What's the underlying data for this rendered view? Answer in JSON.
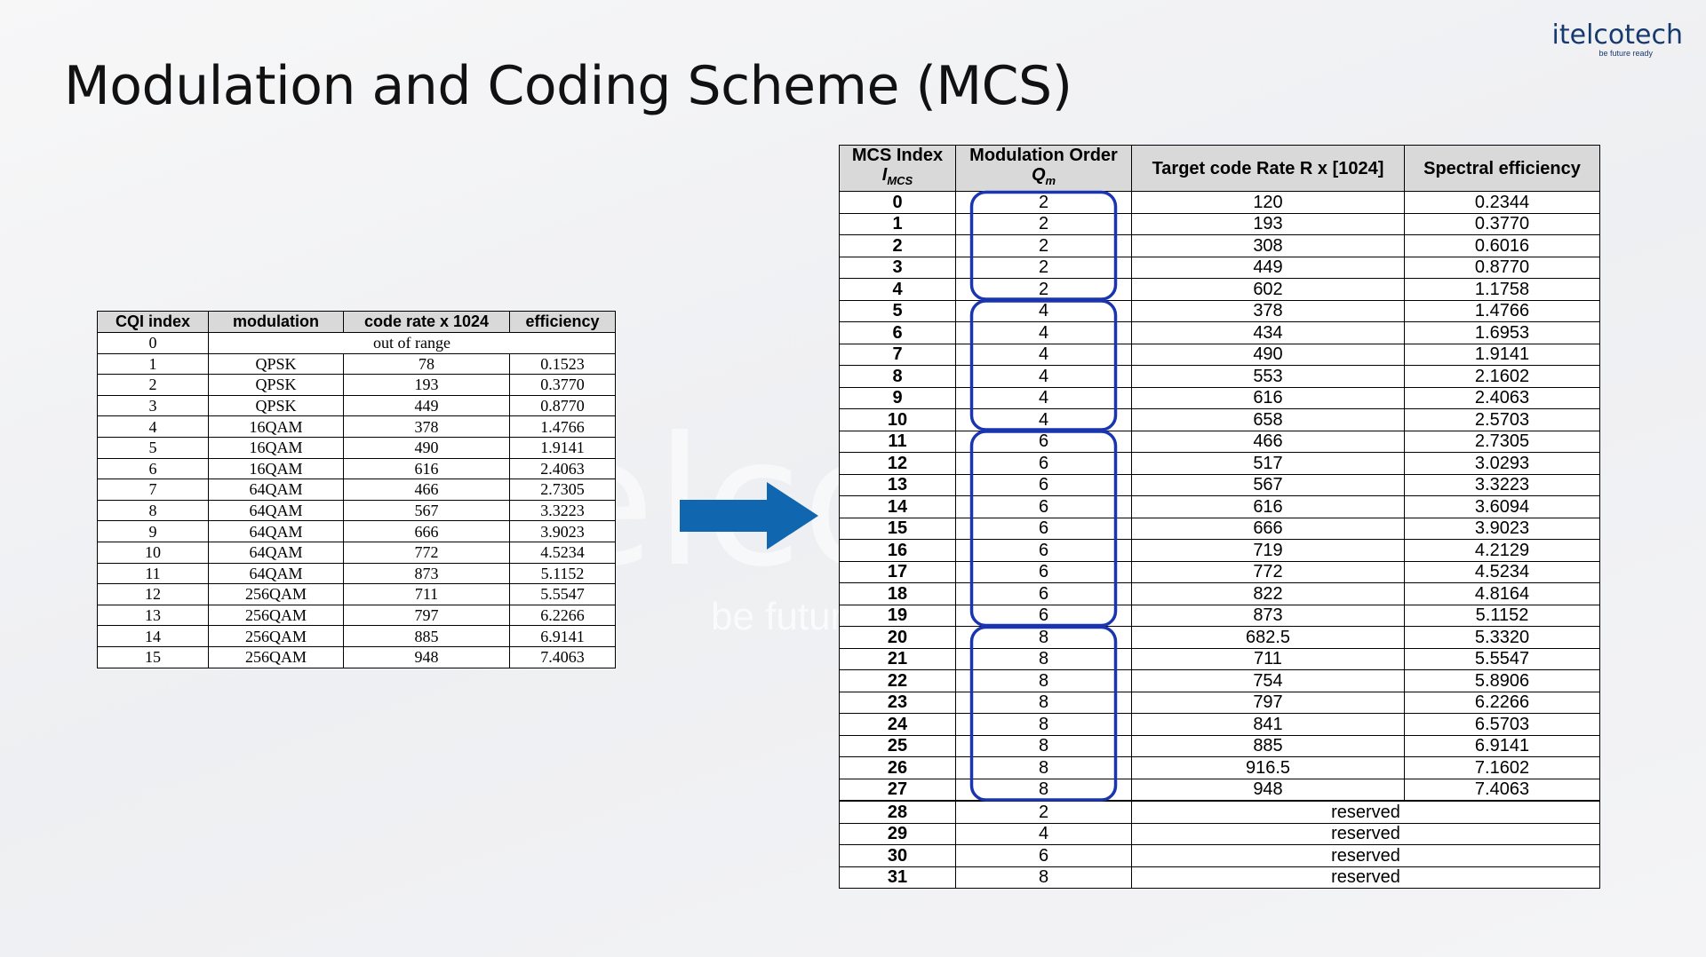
{
  "title": "Modulation and Coding Scheme (MCS)",
  "logo": {
    "name": "itelcotech",
    "tagline": "be future ready"
  },
  "cqi_table": {
    "header": [
      "CQI index",
      "modulation",
      "code rate x 1024",
      "efficiency"
    ],
    "rows": [
      [
        "0",
        "out of range"
      ],
      [
        "1",
        "QPSK",
        "78",
        "0.1523"
      ],
      [
        "2",
        "QPSK",
        "193",
        "0.3770"
      ],
      [
        "3",
        "QPSK",
        "449",
        "0.8770"
      ],
      [
        "4",
        "16QAM",
        "378",
        "1.4766"
      ],
      [
        "5",
        "16QAM",
        "490",
        "1.9141"
      ],
      [
        "6",
        "16QAM",
        "616",
        "2.4063"
      ],
      [
        "7",
        "64QAM",
        "466",
        "2.7305"
      ],
      [
        "8",
        "64QAM",
        "567",
        "3.3223"
      ],
      [
        "9",
        "64QAM",
        "666",
        "3.9023"
      ],
      [
        "10",
        "64QAM",
        "772",
        "4.5234"
      ],
      [
        "11",
        "64QAM",
        "873",
        "5.1152"
      ],
      [
        "12",
        "256QAM",
        "711",
        "5.5547"
      ],
      [
        "13",
        "256QAM",
        "797",
        "6.2266"
      ],
      [
        "14",
        "256QAM",
        "885",
        "6.9141"
      ],
      [
        "15",
        "256QAM",
        "948",
        "7.4063"
      ]
    ]
  },
  "mcs_table": {
    "header": [
      {
        "line1": "MCS Index",
        "symbol": "I",
        "subscript": "MCS"
      },
      {
        "line1": "Modulation Order",
        "symbol": "Q",
        "subscript": "m"
      },
      {
        "line1": "Target code Rate R x [1024]"
      },
      {
        "line1": "Spectral efficiency"
      }
    ],
    "rows": [
      [
        "0",
        "2",
        "120",
        "0.2344"
      ],
      [
        "1",
        "2",
        "193",
        "0.3770"
      ],
      [
        "2",
        "2",
        "308",
        "0.6016"
      ],
      [
        "3",
        "2",
        "449",
        "0.8770"
      ],
      [
        "4",
        "2",
        "602",
        "1.1758"
      ],
      [
        "5",
        "4",
        "378",
        "1.4766"
      ],
      [
        "6",
        "4",
        "434",
        "1.6953"
      ],
      [
        "7",
        "4",
        "490",
        "1.9141"
      ],
      [
        "8",
        "4",
        "553",
        "2.1602"
      ],
      [
        "9",
        "4",
        "616",
        "2.4063"
      ],
      [
        "10",
        "4",
        "658",
        "2.5703"
      ],
      [
        "11",
        "6",
        "466",
        "2.7305"
      ],
      [
        "12",
        "6",
        "517",
        "3.0293"
      ],
      [
        "13",
        "6",
        "567",
        "3.3223"
      ],
      [
        "14",
        "6",
        "616",
        "3.6094"
      ],
      [
        "15",
        "6",
        "666",
        "3.9023"
      ],
      [
        "16",
        "6",
        "719",
        "4.2129"
      ],
      [
        "17",
        "6",
        "772",
        "4.5234"
      ],
      [
        "18",
        "6",
        "822",
        "4.8164"
      ],
      [
        "19",
        "6",
        "873",
        "5.1152"
      ],
      [
        "20",
        "8",
        "682.5",
        "5.3320"
      ],
      [
        "21",
        "8",
        "711",
        "5.5547"
      ],
      [
        "22",
        "8",
        "754",
        "5.8906"
      ],
      [
        "23",
        "8",
        "797",
        "6.2266"
      ],
      [
        "24",
        "8",
        "841",
        "6.5703"
      ],
      [
        "25",
        "8",
        "885",
        "6.9141"
      ],
      [
        "26",
        "8",
        "916.5",
        "7.1602"
      ],
      [
        "27",
        "8",
        "948",
        "7.4063"
      ],
      [
        "28",
        "2",
        "reserved"
      ],
      [
        "29",
        "4",
        "reserved"
      ],
      [
        "30",
        "6",
        "reserved"
      ],
      [
        "31",
        "8",
        "reserved"
      ]
    ]
  }
}
